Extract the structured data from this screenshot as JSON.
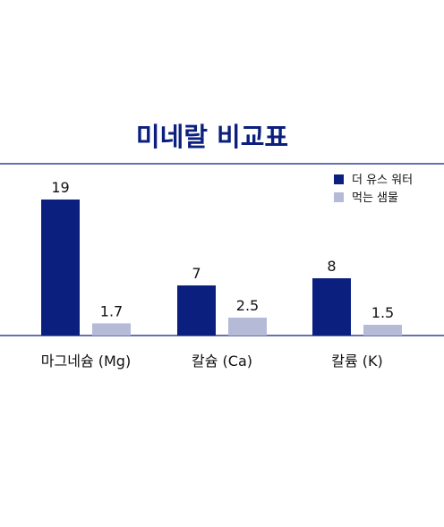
{
  "chart_data": {
    "type": "bar",
    "title": "미네랄 비교표",
    "categories": [
      "마그네슘 (Mg)",
      "칼슘 (Ca)",
      "칼륨 (K)"
    ],
    "series": [
      {
        "name": "더 유스 워터",
        "values": [
          19,
          7,
          8
        ],
        "labels": [
          "19",
          "7",
          "8"
        ],
        "color": "#0b1f7f"
      },
      {
        "name": "먹는 샘물",
        "values": [
          1.7,
          2.5,
          1.5
        ],
        "labels": [
          "1.7",
          "2.5",
          "1.5"
        ],
        "color": "#b5bad7"
      }
    ],
    "ylim": [
      0,
      19
    ],
    "xlabel": "",
    "ylabel": "",
    "grid": false,
    "legend_position": "top-right",
    "colors": {
      "title": "#0b1f7f",
      "rule": "#0b1f7f",
      "text": "#111111"
    }
  }
}
